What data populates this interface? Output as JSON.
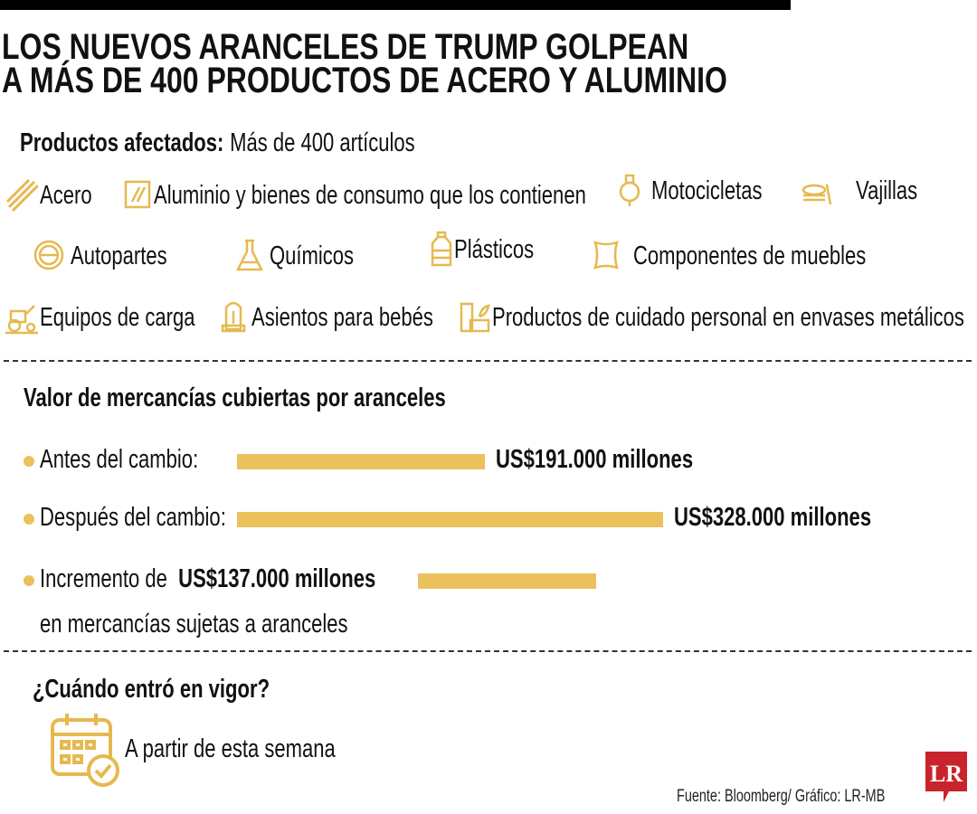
{
  "title_line1": "LOS NUEVOS ARANCELES DE TRUMP GOLPEAN",
  "title_line2": "A MÁS DE 400 PRODUCTOS DE ACERO Y ALUMINIO",
  "products": {
    "label": "Productos afectados:",
    "value": "Más de 400 artículos",
    "items": [
      {
        "label": "Acero",
        "icon": "steel-bars-icon"
      },
      {
        "label": "Aluminio y bienes de consumo que los contienen",
        "icon": "aluminum-foil-icon"
      },
      {
        "label": "Motocicletas",
        "icon": "motorcycle-icon"
      },
      {
        "label": "Vajillas",
        "icon": "dishes-icon"
      },
      {
        "label": "Autopartes",
        "icon": "steering-wheel-icon"
      },
      {
        "label": "Químicos",
        "icon": "flask-icon"
      },
      {
        "label": "Plásticos",
        "icon": "bottle-icon"
      },
      {
        "label": "Componentes de muebles",
        "icon": "leather-icon"
      },
      {
        "label": "Equipos de carga",
        "icon": "loader-tractor-icon"
      },
      {
        "label": "Asientos para bebés",
        "icon": "baby-seat-icon"
      },
      {
        "label": "Productos de cuidado personal en envases metálicos",
        "icon": "cosmetics-icon"
      }
    ]
  },
  "colors": {
    "accent": "#ebc15c",
    "icon": "#e6b94f",
    "logo": "#c8242b"
  },
  "chart_data": {
    "type": "bar",
    "title": "Valor de mercancías cubiertas por aranceles",
    "categories": [
      "Antes del cambio:",
      "Después del cambio:",
      "Incremento de"
    ],
    "values": [
      191000,
      328000,
      137000
    ],
    "value_labels": [
      "US$191.000 millones",
      "US$328.000 millones",
      "US$137.000 millones"
    ],
    "unit": "millones de US$",
    "increment_note": "en mercancías sujetas a aranceles"
  },
  "effective": {
    "heading": "¿Cuándo entró en vigor?",
    "text": "A partir de esta semana",
    "icon": "calendar-check-icon"
  },
  "source": "Fuente: Bloomberg/ Gráfico: LR-MB",
  "logo_text": "LR"
}
